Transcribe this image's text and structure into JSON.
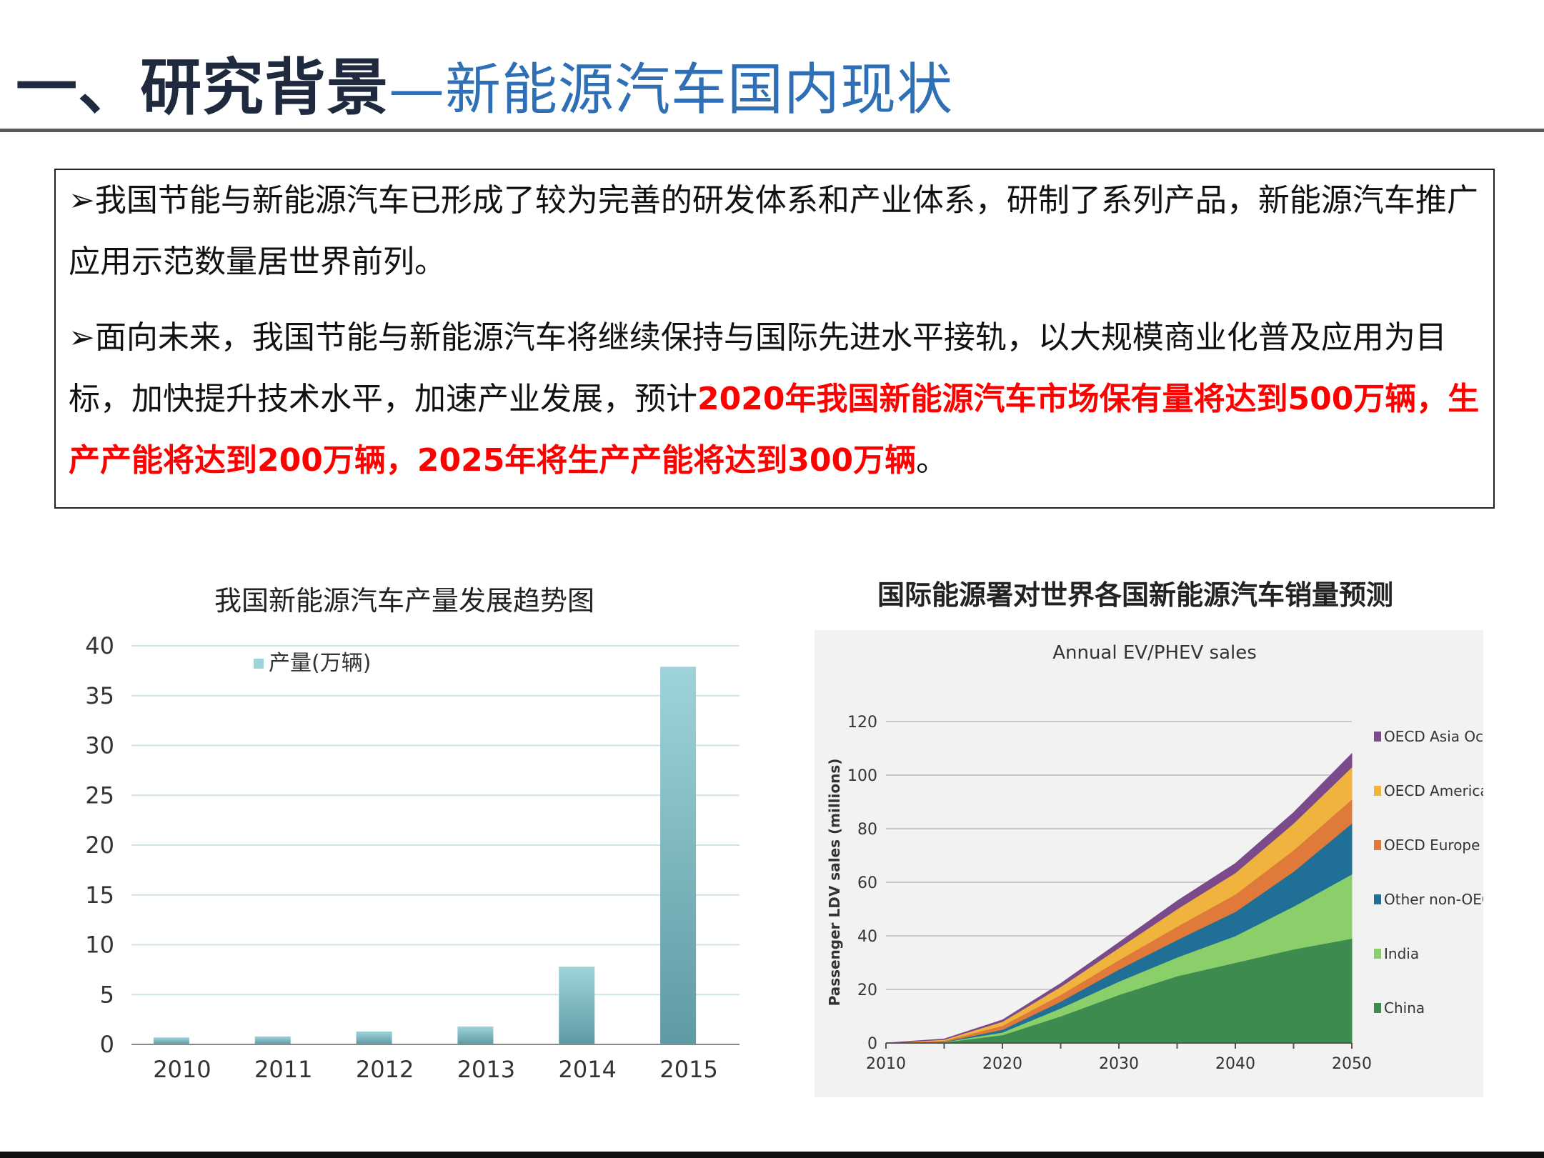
{
  "title": {
    "main": "一、研究背景",
    "dash": "—",
    "sub": "新能源汽车国内现状"
  },
  "box": {
    "bullet": "➢",
    "p1": "我国节能与新能源汽车已形成了较为完善的研发体系和产业体系，研制了系列产品，新能源汽车推广应用示范数量居世界前列。",
    "p2_normal": "面向未来，我国节能与新能源汽车将继续保持与国际先进水平接轨，以大规模商业化普及应用为目标，加快提升技术水平，加速产业发展，预计",
    "p2_highlight": "2020年我国新能源汽车市场保有量将达到500万辆，生产产能将达到200万辆，2025年将生产产能将达到300万辆",
    "p2_end": "。",
    "highlight_color": "#ff0000"
  },
  "chart_data": [
    {
      "type": "bar",
      "title": "我国新能源汽车产量发展趋势图",
      "categories": [
        "2010",
        "2011",
        "2012",
        "2013",
        "2014",
        "2015"
      ],
      "series": [
        {
          "name": "产量(万辆)",
          "values": [
            0.7,
            0.8,
            1.3,
            1.8,
            7.8,
            37.9
          ]
        }
      ],
      "ylim": [
        0,
        40
      ],
      "yticks": [
        "0",
        "5",
        "10",
        "15",
        "20",
        "25",
        "30",
        "35",
        "40"
      ],
      "grid": true,
      "legend": "top-left",
      "color": "#9fd3da"
    },
    {
      "type": "area",
      "title": "国际能源署对世界各国新能源汽车销量预测",
      "subtitle": "Annual EV/PHEV sales",
      "ylabel": "Passenger LDV sales (millions)",
      "x": [
        2010,
        2015,
        2020,
        2025,
        2030,
        2035,
        2040,
        2045,
        2050
      ],
      "xticks": [
        "2010",
        "2020",
        "2030",
        "2040",
        "2050"
      ],
      "yticks": [
        "0",
        "20",
        "40",
        "60",
        "80",
        "100",
        "120"
      ],
      "ylim": [
        0,
        120
      ],
      "stacked": true,
      "legend": "right",
      "series": [
        {
          "name": "China",
          "color": "#3d8b4f",
          "values": [
            0,
            0.3,
            3,
            10,
            18,
            25,
            30,
            35,
            39
          ]
        },
        {
          "name": "India",
          "color": "#8bcf6a",
          "values": [
            0,
            0.1,
            1,
            3,
            5,
            7,
            10,
            16,
            24
          ]
        },
        {
          "name": "Other non-OECD",
          "color": "#1f6f96",
          "values": [
            0,
            0.1,
            1,
            2.5,
            4.5,
            6.5,
            9,
            13,
            19
          ]
        },
        {
          "name": "OECD Europe",
          "color": "#e07a3a",
          "values": [
            0,
            0.4,
            1.5,
            2.5,
            3.5,
            5,
            6.5,
            8,
            9
          ]
        },
        {
          "name": "OECD Americas",
          "color": "#f0b43e",
          "values": [
            0,
            0.4,
            1.5,
            3,
            4.5,
            6.5,
            8,
            10,
            12
          ]
        },
        {
          "name": "OECD Asia Oceania",
          "color": "#7b4a8a",
          "values": [
            0,
            0.2,
            0.6,
            1.2,
            2,
            3,
            3.5,
            4,
            5
          ]
        }
      ]
    }
  ]
}
